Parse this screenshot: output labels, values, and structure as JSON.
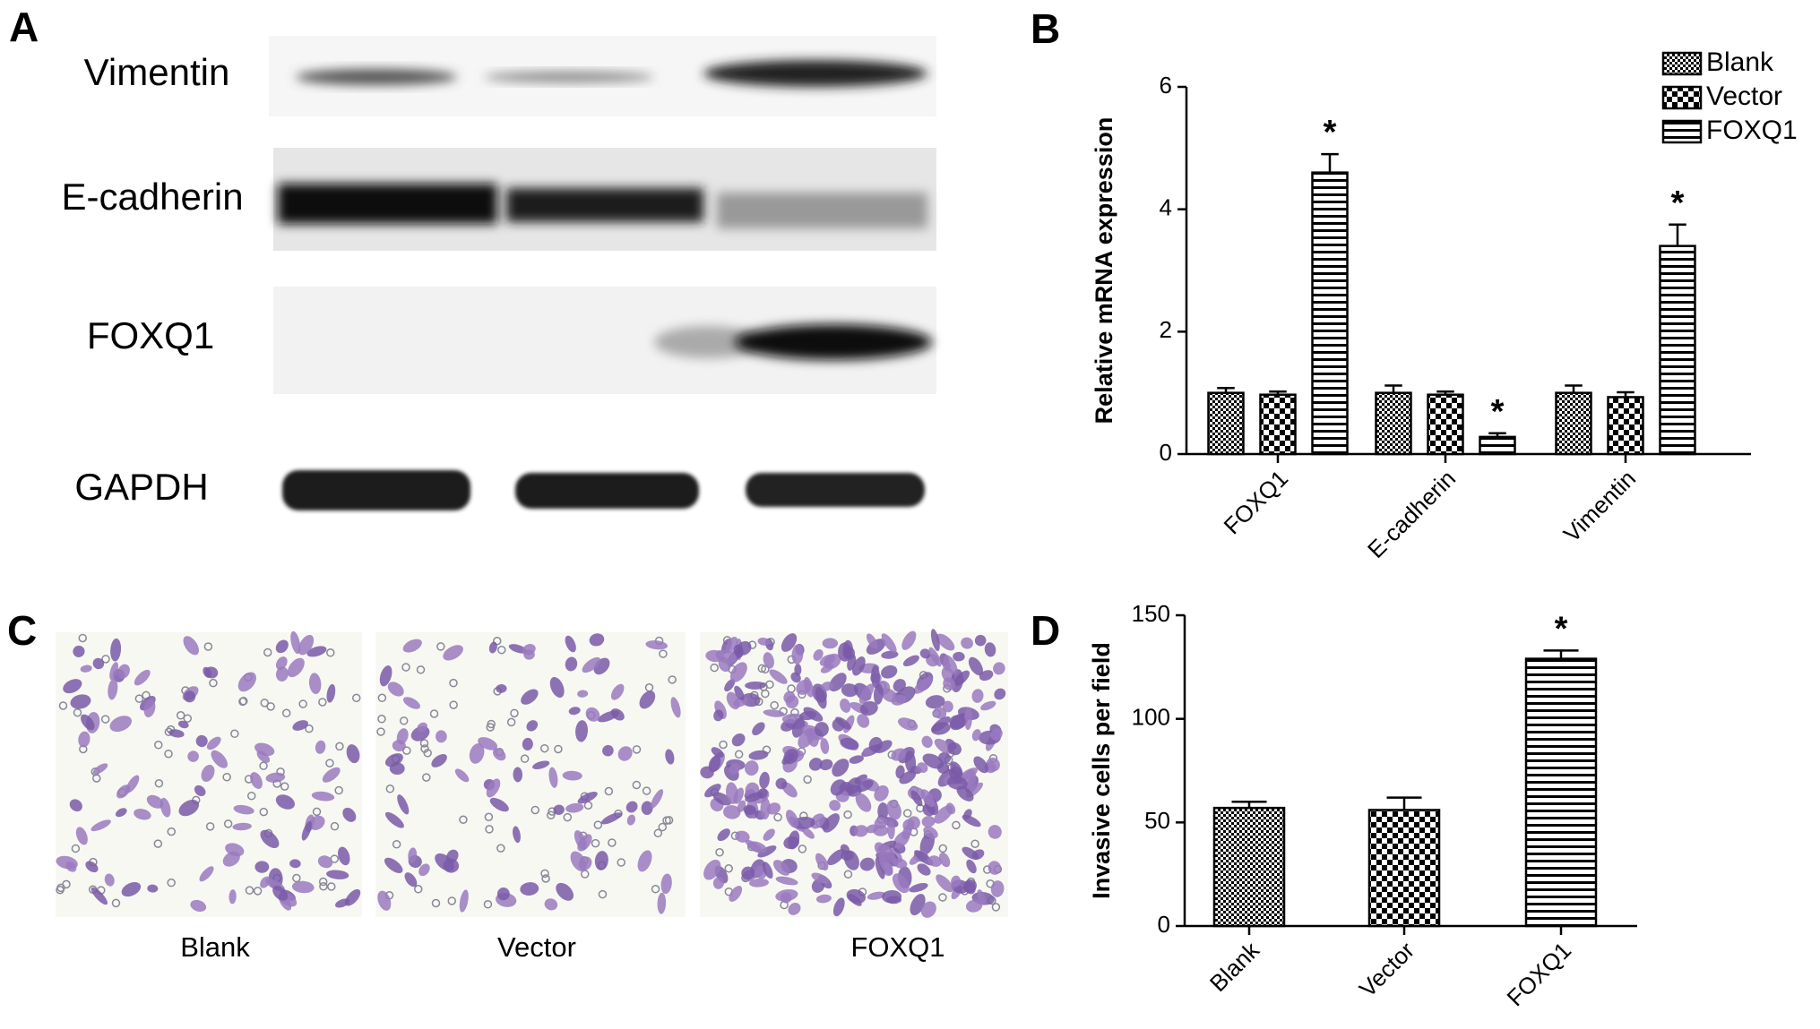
{
  "panel_labels": [
    "A",
    "B",
    "C",
    "D"
  ],
  "blot": {
    "rows": [
      "Vimentin",
      "E-cadherin",
      "FOXQ1",
      "GAPDH"
    ]
  },
  "micrographs": {
    "labels": [
      "Blank",
      "Vector",
      "FOXQ1"
    ]
  },
  "chart_data": [
    {
      "type": "bar",
      "y_label": "Relative mRNA expression",
      "categories": [
        "FOXQ1",
        "E-cadherin",
        "Vimentin"
      ],
      "series": [
        {
          "name": "Blank",
          "color": "#000000",
          "pattern": "fine-checker",
          "values": [
            1.0,
            1.0,
            1.0
          ],
          "errors": [
            0.08,
            0.12,
            0.12
          ],
          "annotations": [
            null,
            null,
            null
          ]
        },
        {
          "name": "Vector",
          "color": "#000000",
          "pattern": "checker",
          "values": [
            0.97,
            0.97,
            0.93
          ],
          "errors": [
            0.05,
            0.05,
            0.08
          ],
          "annotations": [
            null,
            null,
            null
          ]
        },
        {
          "name": "FOXQ1",
          "color": "#000000",
          "pattern": "stripes",
          "values": [
            4.6,
            0.28,
            3.4
          ],
          "errors": [
            0.3,
            0.06,
            0.35
          ],
          "annotations": [
            "*",
            "*",
            "*"
          ]
        }
      ],
      "ylim": [
        0,
        6
      ],
      "yticks": [
        0,
        2,
        4,
        6
      ],
      "legend": "top-right",
      "grid": false
    },
    {
      "type": "bar",
      "y_label": "Invasive cells per field",
      "categories": [
        "Blank",
        "Vector",
        "FOXQ1"
      ],
      "values": [
        57,
        56,
        129
      ],
      "errors": [
        3,
        6,
        4
      ],
      "patterns": [
        "fine-checker",
        "checker",
        "stripes"
      ],
      "color": "#000000",
      "annotations": [
        null,
        null,
        "*"
      ],
      "ylim": [
        0,
        150
      ],
      "yticks": [
        0,
        50,
        100,
        150
      ],
      "grid": false
    }
  ]
}
